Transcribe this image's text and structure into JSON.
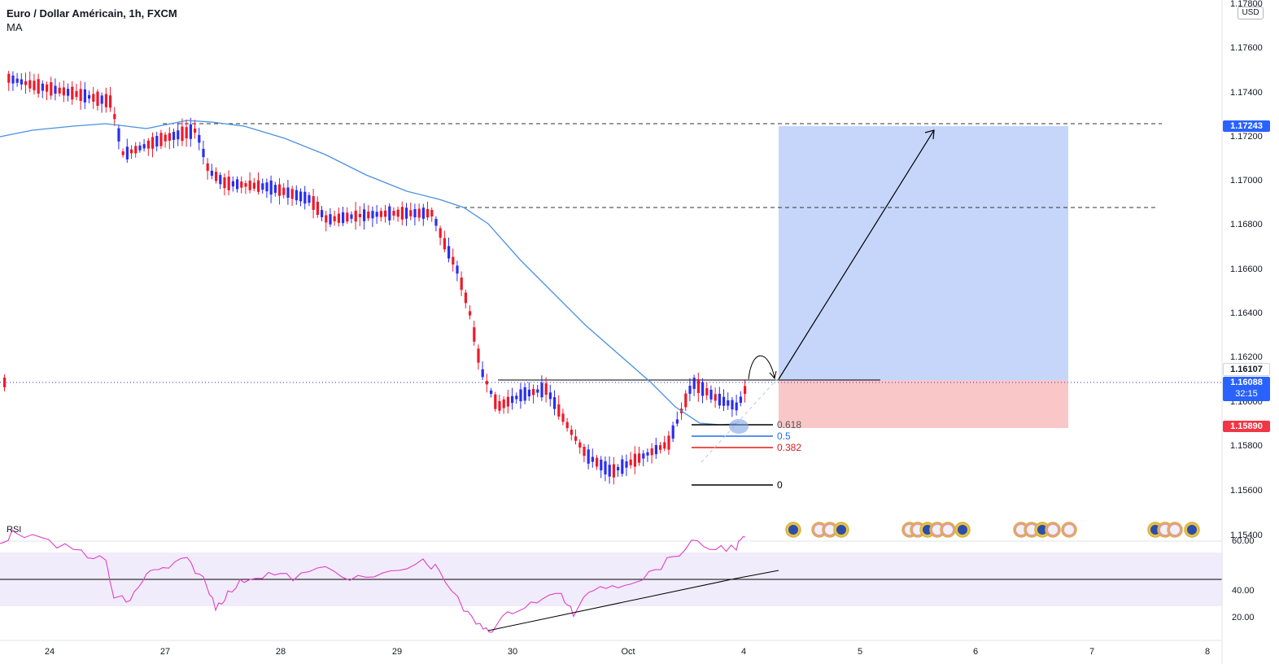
{
  "header": {
    "title": "Euro / Dollar Américain, 1h, FXCM",
    "indicator": "MA"
  },
  "currency": "USD",
  "price_axis": {
    "ticks": [
      "1.17800",
      "1.17600",
      "1.17400",
      "1.17200",
      "1.17000",
      "1.16800",
      "1.16600",
      "1.16400",
      "1.16200",
      "1.16000",
      "1.15800",
      "1.15600",
      "1.15400"
    ]
  },
  "badges": {
    "target": "1.17243",
    "entry": "1.16107",
    "current": "1.16088",
    "countdown": "32:15",
    "stop": "1.15890"
  },
  "fib_levels": [
    "0.618",
    "0.5",
    "0.382",
    "0"
  ],
  "rsi": {
    "label": "RSI",
    "ticks": [
      "60.00",
      "40.00",
      "20.00"
    ]
  },
  "time_axis": {
    "labels": [
      "24",
      "27",
      "28",
      "29",
      "30",
      "Oct",
      "4",
      "5",
      "6",
      "7",
      "8"
    ]
  },
  "colors": {
    "up": "#2a2ef0",
    "down": "#f0182a",
    "ma": "#4a90e2",
    "target_zone": "#c6d6fa",
    "stop_zone": "#f9c7c7",
    "rsi": "#e040c8"
  }
}
